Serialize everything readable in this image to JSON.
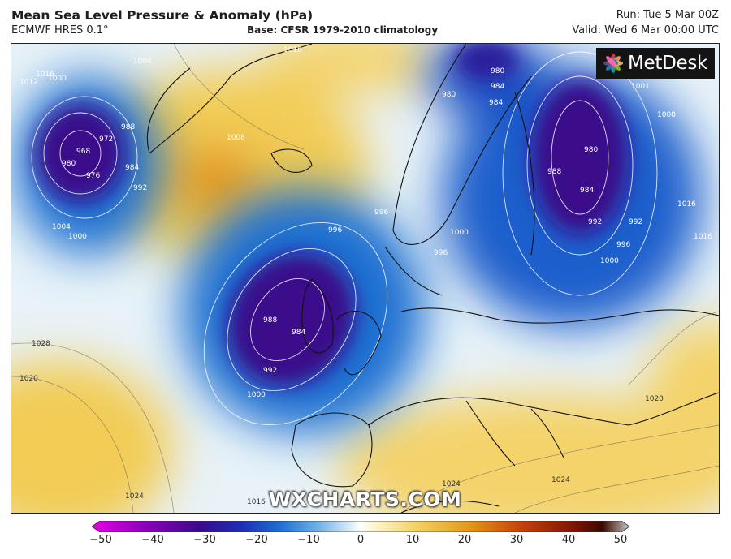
{
  "header": {
    "title": "Mean Sea Level Pressure & Anomaly (hPa)",
    "model": "ECMWF HRES 0.1°",
    "base": "Base: CFSR 1979-2010 climatology",
    "run": "Run: Tue 5 Mar 00Z",
    "valid": "Valid: Wed 6 Mar 00:00 UTC"
  },
  "logo": {
    "text": "MetDesk"
  },
  "watermark": "WXCHARTS.COM",
  "isobar_labels": [
    "1004",
    "1012",
    "1000",
    "1016",
    "1016",
    "980",
    "984",
    "980",
    "1001",
    "1008",
    "988",
    "972",
    "968",
    "984",
    "980",
    "976",
    "992",
    "1008",
    "996",
    "1004",
    "1000",
    "996",
    "996",
    "1000",
    "988",
    "984",
    "992",
    "1000",
    "1016",
    "988",
    "984",
    "992",
    "980",
    "984",
    "992",
    "996",
    "1000",
    "1016",
    "1020",
    "1028",
    "1020",
    "1024",
    "1016",
    "1024",
    "1024"
  ],
  "colorbar": {
    "ticks": [
      "−50",
      "−40",
      "−30",
      "−20",
      "−10",
      "0",
      "10",
      "20",
      "30",
      "40",
      "50"
    ],
    "min": -50,
    "max": 50,
    "stops": [
      {
        "v": -50,
        "color": "#e600e6"
      },
      {
        "v": -40,
        "color": "#8a00b8"
      },
      {
        "v": -30,
        "color": "#3a0a8a"
      },
      {
        "v": -22,
        "color": "#1d2fb5"
      },
      {
        "v": -15,
        "color": "#1f6fd1"
      },
      {
        "v": -8,
        "color": "#6fb0e6"
      },
      {
        "v": -2,
        "color": "#d8ecf7"
      },
      {
        "v": 0,
        "color": "#ffffff"
      },
      {
        "v": 3,
        "color": "#fbf3c8"
      },
      {
        "v": 10,
        "color": "#f4d36a"
      },
      {
        "v": 20,
        "color": "#e39a1a"
      },
      {
        "v": 30,
        "color": "#c4400c"
      },
      {
        "v": 40,
        "color": "#7a1400"
      },
      {
        "v": 45,
        "color": "#3a0a00"
      },
      {
        "v": 50,
        "color": "#c8c8c8"
      }
    ]
  }
}
